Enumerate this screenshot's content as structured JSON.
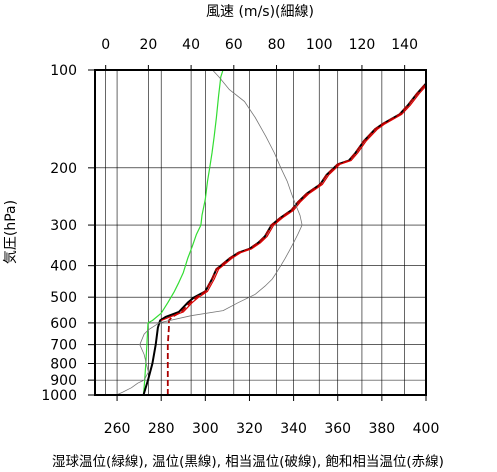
{
  "chart_data": {
    "type": "line",
    "title": "",
    "top_axis": {
      "label": "風速 (m/s)(細線)",
      "range": [
        -5,
        150
      ],
      "ticks": [
        0,
        20,
        40,
        60,
        80,
        100,
        120,
        140
      ]
    },
    "bottom_axis": {
      "label": "湿球温位(緑線), 温位(黒線), 相当温位(破線), 飽和相当温位(赤線)",
      "range": [
        250,
        400
      ],
      "ticks": [
        260,
        280,
        300,
        320,
        340,
        360,
        380,
        400
      ]
    },
    "y_axis": {
      "label": "気圧(hPa)",
      "scale": "log",
      "inverted": true,
      "range": [
        1000,
        100
      ],
      "ticks": [
        100,
        200,
        300,
        400,
        500,
        600,
        700,
        800,
        900,
        1000
      ]
    },
    "grid": true,
    "series": [
      {
        "name": "湿球温位",
        "axis": "bottom",
        "color": "#33dd33",
        "style": "solid",
        "points": [
          [
            272,
            1000
          ],
          [
            272.5,
            900
          ],
          [
            273,
            800
          ],
          [
            273.5,
            700
          ],
          [
            274,
            600
          ],
          [
            276,
            590
          ],
          [
            280,
            560
          ],
          [
            283,
            520
          ],
          [
            286,
            480
          ],
          [
            288,
            450
          ],
          [
            290,
            420
          ],
          [
            292,
            380
          ],
          [
            294,
            350
          ],
          [
            296,
            320
          ],
          [
            298,
            300
          ],
          [
            298.5,
            280
          ],
          [
            300,
            250
          ],
          [
            301,
            220
          ],
          [
            302,
            200
          ],
          [
            303,
            180
          ],
          [
            304,
            160
          ],
          [
            305,
            140
          ],
          [
            306,
            120
          ],
          [
            307,
            105
          ],
          [
            308,
            100
          ]
        ]
      },
      {
        "name": "温位",
        "axis": "bottom",
        "color": "#000000",
        "style": "solid",
        "points": [
          [
            272,
            1000
          ],
          [
            274,
            900
          ],
          [
            276,
            800
          ],
          [
            277.5,
            700
          ],
          [
            278.5,
            620
          ],
          [
            279.5,
            590
          ],
          [
            282,
            575
          ],
          [
            288,
            555
          ],
          [
            292,
            520
          ],
          [
            295,
            500
          ],
          [
            300,
            480
          ],
          [
            303,
            440
          ],
          [
            305,
            410
          ],
          [
            307,
            400
          ],
          [
            311,
            380
          ],
          [
            315,
            365
          ],
          [
            320,
            355
          ],
          [
            324,
            340
          ],
          [
            327,
            325
          ],
          [
            330,
            300
          ],
          [
            334,
            285
          ],
          [
            339,
            270
          ],
          [
            342,
            255
          ],
          [
            346,
            240
          ],
          [
            352,
            225
          ],
          [
            355,
            210
          ],
          [
            360,
            195
          ],
          [
            365,
            190
          ],
          [
            368,
            180
          ],
          [
            372,
            165
          ],
          [
            377,
            152
          ],
          [
            380,
            147
          ],
          [
            388,
            137
          ],
          [
            392,
            128
          ],
          [
            396,
            118
          ],
          [
            400,
            110
          ]
        ]
      },
      {
        "name": "相当温位",
        "axis": "bottom",
        "color": "#aa0000",
        "style": "dashed",
        "points": [
          [
            283,
            1000
          ],
          [
            283,
            900
          ],
          [
            283,
            800
          ],
          [
            283,
            700
          ],
          [
            283.5,
            620
          ],
          [
            283.5,
            590
          ],
          [
            285,
            575
          ],
          [
            289,
            555
          ],
          [
            293,
            520
          ],
          [
            296,
            500
          ],
          [
            300,
            480
          ],
          [
            303,
            440
          ],
          [
            305,
            410
          ],
          [
            307,
            400
          ],
          [
            311,
            380
          ],
          [
            315,
            365
          ],
          [
            320,
            355
          ],
          [
            324,
            340
          ],
          [
            327,
            325
          ],
          [
            330,
            300
          ],
          [
            334,
            285
          ],
          [
            339,
            270
          ],
          [
            342,
            255
          ],
          [
            346,
            240
          ],
          [
            352,
            225
          ],
          [
            355,
            210
          ],
          [
            360,
            195
          ],
          [
            365,
            190
          ],
          [
            368,
            180
          ],
          [
            372,
            165
          ],
          [
            377,
            152
          ],
          [
            380,
            147
          ],
          [
            388,
            137
          ],
          [
            392,
            128
          ],
          [
            396,
            118
          ],
          [
            400,
            110
          ]
        ]
      },
      {
        "name": "飽和相当温位",
        "axis": "bottom",
        "color": "#dd0000",
        "style": "solid",
        "points": [
          [
            280,
            590
          ],
          [
            284,
            575
          ],
          [
            290,
            555
          ],
          [
            294,
            520
          ],
          [
            297,
            500
          ],
          [
            301,
            480
          ],
          [
            304,
            440
          ],
          [
            306,
            410
          ],
          [
            308,
            400
          ],
          [
            312,
            380
          ],
          [
            316,
            365
          ],
          [
            321,
            355
          ],
          [
            325,
            340
          ],
          [
            328,
            325
          ],
          [
            331,
            300
          ],
          [
            335,
            285
          ],
          [
            340,
            270
          ],
          [
            343,
            255
          ],
          [
            347,
            240
          ],
          [
            353,
            225
          ],
          [
            356,
            210
          ],
          [
            361,
            195
          ],
          [
            366,
            190
          ],
          [
            369,
            180
          ],
          [
            373,
            165
          ],
          [
            378,
            152
          ],
          [
            381,
            147
          ],
          [
            389,
            137
          ],
          [
            393,
            128
          ],
          [
            397,
            118
          ],
          [
            400,
            112
          ]
        ]
      },
      {
        "name": "風速",
        "axis": "top",
        "color": "#777777",
        "style": "solid",
        "points": [
          [
            5,
            1000
          ],
          [
            8,
            980
          ],
          [
            12,
            950
          ],
          [
            15,
            920
          ],
          [
            18,
            900
          ],
          [
            20,
            850
          ],
          [
            19,
            800
          ],
          [
            18,
            750
          ],
          [
            16,
            700
          ],
          [
            18,
            650
          ],
          [
            20,
            630
          ],
          [
            25,
            600
          ],
          [
            40,
            570
          ],
          [
            55,
            550
          ],
          [
            62,
            520
          ],
          [
            70,
            490
          ],
          [
            75,
            460
          ],
          [
            78,
            440
          ],
          [
            80,
            420
          ],
          [
            82,
            400
          ],
          [
            84,
            380
          ],
          [
            86,
            360
          ],
          [
            88,
            340
          ],
          [
            90,
            320
          ],
          [
            92,
            300
          ],
          [
            91,
            280
          ],
          [
            89,
            260
          ],
          [
            87,
            240
          ],
          [
            85,
            220
          ],
          [
            82,
            200
          ],
          [
            79,
            180
          ],
          [
            75,
            160
          ],
          [
            70,
            140
          ],
          [
            65,
            125
          ],
          [
            58,
            115
          ],
          [
            53,
            105
          ],
          [
            50,
            100
          ]
        ]
      }
    ]
  }
}
